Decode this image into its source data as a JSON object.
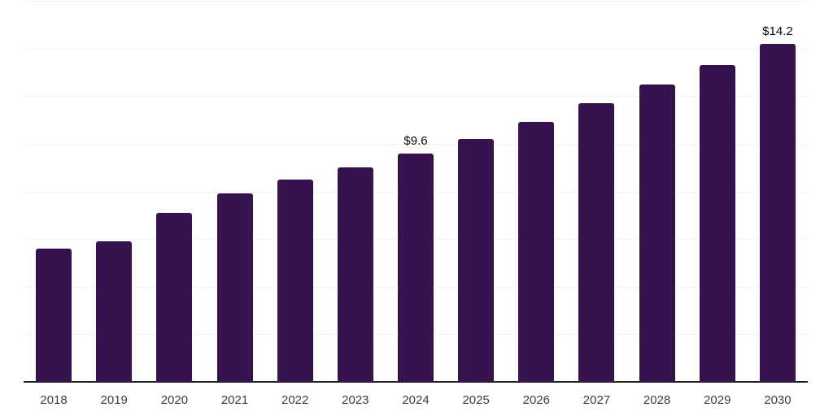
{
  "chart_data": {
    "type": "bar",
    "title": "",
    "xlabel": "",
    "ylabel": "",
    "categories": [
      "2018",
      "2019",
      "2020",
      "2021",
      "2022",
      "2023",
      "2024",
      "2025",
      "2026",
      "2027",
      "2028",
      "2029",
      "2030"
    ],
    "values": [
      5.6,
      5.9,
      7.1,
      7.9,
      8.5,
      9.0,
      9.6,
      10.2,
      10.9,
      11.7,
      12.5,
      13.3,
      14.2
    ],
    "data_labels": [
      "",
      "",
      "",
      "",
      "",
      "",
      "$9.6",
      "",
      "",
      "",
      "",
      "",
      "$14.2"
    ],
    "ylim": [
      0,
      16
    ],
    "grid_step": 2,
    "grid": true,
    "legend": false,
    "colors": {
      "bar": "#36124E",
      "gridline": "#f2f2f5",
      "axis_line": "#222222",
      "tick_label": "#3c3c3c",
      "data_label": "#0b0b0b",
      "background": "#ffffff"
    }
  }
}
